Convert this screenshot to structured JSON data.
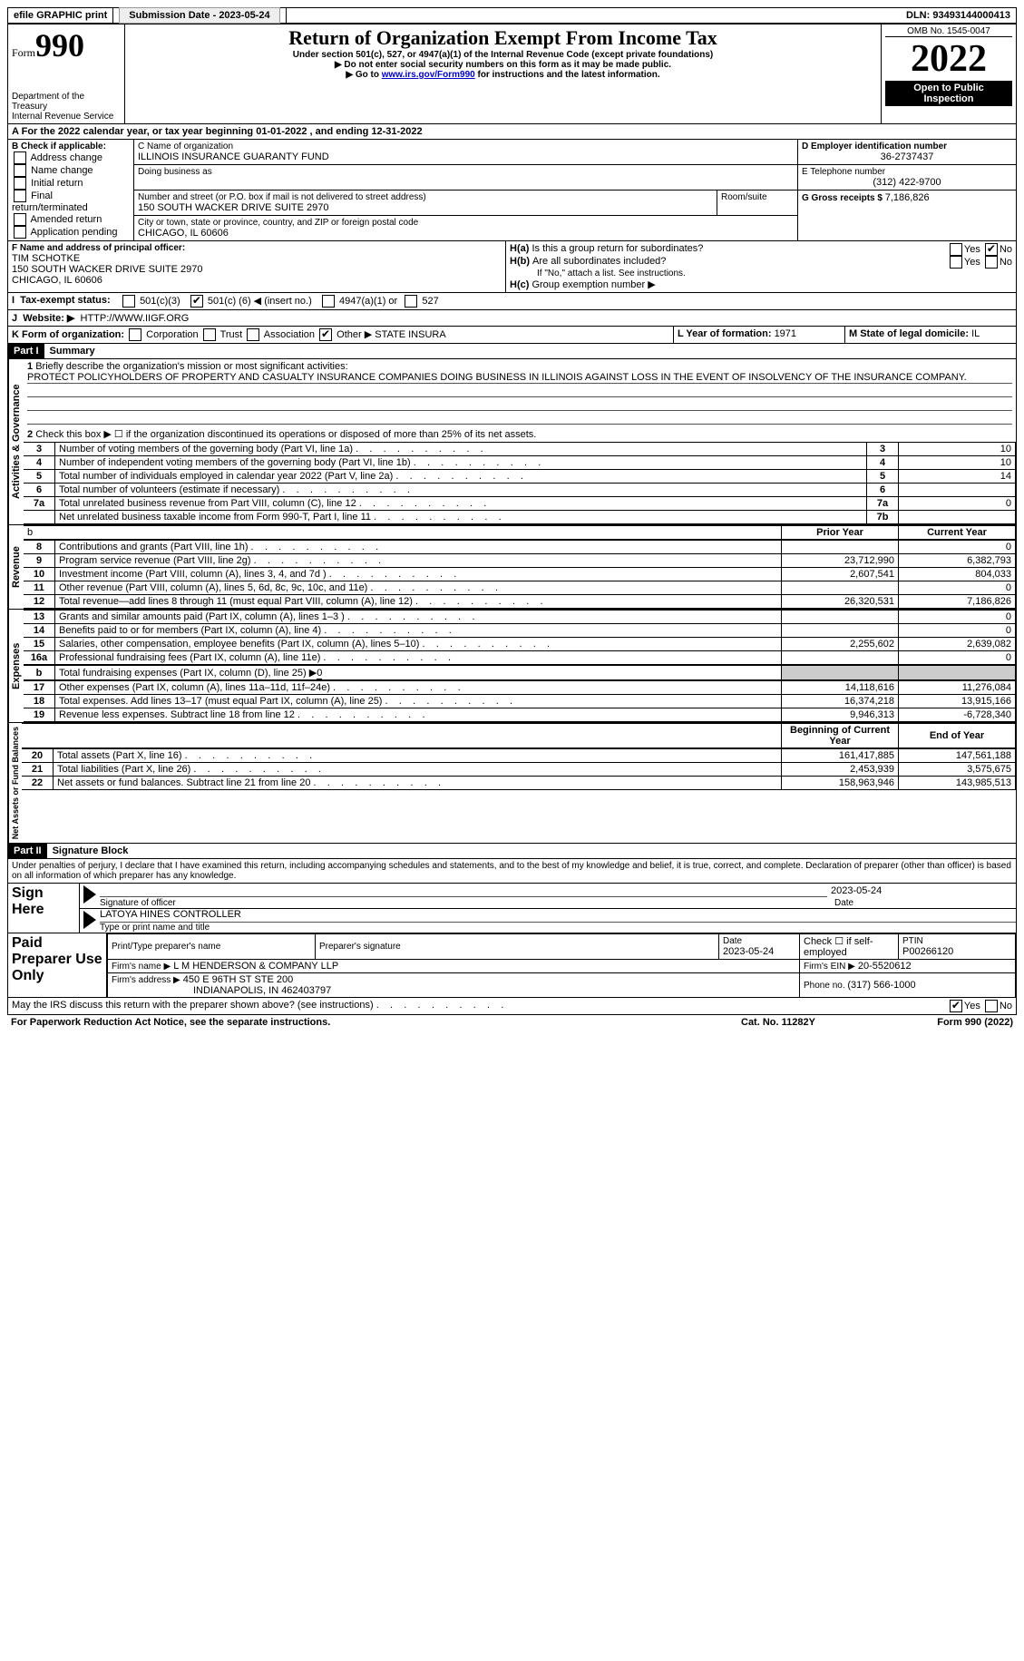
{
  "top": {
    "efile": "efile GRAPHIC print",
    "sub_label": "Submission Date - 2023-05-24",
    "dln_label": "DLN: 93493144000413"
  },
  "header": {
    "form_label": "Form",
    "form_number": "990",
    "title": "Return of Organization Exempt From Income Tax",
    "sub1": "Under section 501(c), 527, or 4947(a)(1) of the Internal Revenue Code (except private foundations)",
    "sub2": "Do not enter social security numbers on this form as it may be made public.",
    "sub3_pre": "Go to ",
    "sub3_link": "www.irs.gov/Form990",
    "sub3_post": " for instructions and the latest information.",
    "dept": "Department of the Treasury",
    "irs": "Internal Revenue Service",
    "omb": "OMB No. 1545-0047",
    "year": "2022",
    "open": "Open to Public Inspection"
  },
  "A": {
    "text_pre": "For the 2022 calendar year, or tax year beginning ",
    "begin": "01-01-2022",
    "mid": " , and ending ",
    "end": "12-31-2022"
  },
  "B": {
    "label": "B Check if applicable:",
    "items": [
      "Address change",
      "Name change",
      "Initial return",
      "Final return/terminated",
      "Amended return",
      "Application pending"
    ]
  },
  "C": {
    "name_label": "C Name of organization",
    "name": "ILLINOIS INSURANCE GUARANTY FUND",
    "dba_label": "Doing business as",
    "street_label": "Number and street (or P.O. box if mail is not delivered to street address)",
    "room_label": "Room/suite",
    "street": "150 SOUTH WACKER DRIVE SUITE 2970",
    "city_label": "City or town, state or province, country, and ZIP or foreign postal code",
    "city": "CHICAGO, IL  60606"
  },
  "D": {
    "label": "D Employer identification number",
    "value": "36-2737437"
  },
  "E": {
    "label": "E Telephone number",
    "value": "(312) 422-9700"
  },
  "G": {
    "label": "G Gross receipts $ ",
    "value": "7,186,826"
  },
  "F": {
    "label": "F Name and address of principal officer:",
    "name": "TIM SCHOTKE",
    "addr1": "150 SOUTH WACKER DRIVE SUITE 2970",
    "addr2": "CHICAGO, IL  60606"
  },
  "H": {
    "a": "Is this a group return for subordinates?",
    "b": "Are all subordinates included?",
    "b_note": "If \"No,\" attach a list. See instructions.",
    "c_label": "Group exemption number ▶",
    "yes": "Yes",
    "no": "No"
  },
  "I": {
    "label": "Tax-exempt status:",
    "c3": "501(c)(3)",
    "c_other_pre": "501(c) (",
    "c_other_val": "6",
    "c_other_post": ") ◀ (insert no.)",
    "a1": "4947(a)(1) or",
    "s527": "527"
  },
  "J": {
    "label": "Website: ▶",
    "value": "HTTP://WWW.IIGF.ORG"
  },
  "K": {
    "label": "K Form of organization:",
    "corp": "Corporation",
    "trust": "Trust",
    "assoc": "Association",
    "other_label": "Other ▶",
    "other_val": "STATE INSURA"
  },
  "L": {
    "label": "L Year of formation: ",
    "value": "1971"
  },
  "M": {
    "label": "M State of legal domicile: ",
    "value": "IL"
  },
  "partI": {
    "header": "Part I",
    "title": "Summary",
    "line1_label": "Briefly describe the organization's mission or most significant activities:",
    "line1_text": "PROTECT POLICYHOLDERS OF PROPERTY AND CASUALTY INSURANCE COMPANIES DOING BUSINESS IN ILLINOIS AGAINST LOSS IN THE EVENT OF INSOLVENCY OF THE INSURANCE COMPANY.",
    "line2": "Check this box ▶ ☐ if the organization discontinued its operations or disposed of more than 25% of its net assets.",
    "sectionA": "Activities & Governance",
    "sectionR": "Revenue",
    "sectionE": "Expenses",
    "sectionN": "Net Assets or Fund Balances",
    "rows_ag": [
      {
        "n": "3",
        "t": "Number of voting members of the governing body (Part VI, line 1a)",
        "box": "3",
        "v": "10"
      },
      {
        "n": "4",
        "t": "Number of independent voting members of the governing body (Part VI, line 1b)",
        "box": "4",
        "v": "10"
      },
      {
        "n": "5",
        "t": "Total number of individuals employed in calendar year 2022 (Part V, line 2a)",
        "box": "5",
        "v": "14"
      },
      {
        "n": "6",
        "t": "Total number of volunteers (estimate if necessary)",
        "box": "6",
        "v": ""
      },
      {
        "n": "7a",
        "t": "Total unrelated business revenue from Part VIII, column (C), line 12",
        "box": "7a",
        "v": "0"
      },
      {
        "n": "",
        "t": "Net unrelated business taxable income from Form 990-T, Part I, line 11",
        "box": "7b",
        "v": ""
      }
    ],
    "col_prior": "Prior Year",
    "col_current": "Current Year",
    "rows_rev": [
      {
        "n": "8",
        "t": "Contributions and grants (Part VIII, line 1h)",
        "p": "",
        "c": "0"
      },
      {
        "n": "9",
        "t": "Program service revenue (Part VIII, line 2g)",
        "p": "23,712,990",
        "c": "6,382,793"
      },
      {
        "n": "10",
        "t": "Investment income (Part VIII, column (A), lines 3, 4, and 7d )",
        "p": "2,607,541",
        "c": "804,033"
      },
      {
        "n": "11",
        "t": "Other revenue (Part VIII, column (A), lines 5, 6d, 8c, 9c, 10c, and 11e)",
        "p": "",
        "c": "0"
      },
      {
        "n": "12",
        "t": "Total revenue—add lines 8 through 11 (must equal Part VIII, column (A), line 12)",
        "p": "26,320,531",
        "c": "7,186,826"
      }
    ],
    "rows_exp": [
      {
        "n": "13",
        "t": "Grants and similar amounts paid (Part IX, column (A), lines 1–3 )",
        "p": "",
        "c": "0"
      },
      {
        "n": "14",
        "t": "Benefits paid to or for members (Part IX, column (A), line 4)",
        "p": "",
        "c": "0"
      },
      {
        "n": "15",
        "t": "Salaries, other compensation, employee benefits (Part IX, column (A), lines 5–10)",
        "p": "2,255,602",
        "c": "2,639,082"
      },
      {
        "n": "16a",
        "t": "Professional fundraising fees (Part IX, column (A), line 11e)",
        "p": "",
        "c": "0"
      }
    ],
    "row_16b_label": "Total fundraising expenses (Part IX, column (D), line 25) ▶",
    "row_16b_val": "0",
    "rows_exp2": [
      {
        "n": "17",
        "t": "Other expenses (Part IX, column (A), lines 11a–11d, 11f–24e)",
        "p": "14,118,616",
        "c": "11,276,084"
      },
      {
        "n": "18",
        "t": "Total expenses. Add lines 13–17 (must equal Part IX, column (A), line 25)",
        "p": "16,374,218",
        "c": "13,915,166"
      },
      {
        "n": "19",
        "t": "Revenue less expenses. Subtract line 18 from line 12",
        "p": "9,946,313",
        "c": "-6,728,340"
      }
    ],
    "col_begin": "Beginning of Current Year",
    "col_end": "End of Year",
    "rows_net": [
      {
        "n": "20",
        "t": "Total assets (Part X, line 16)",
        "p": "161,417,885",
        "c": "147,561,188"
      },
      {
        "n": "21",
        "t": "Total liabilities (Part X, line 26)",
        "p": "2,453,939",
        "c": "3,575,675"
      },
      {
        "n": "22",
        "t": "Net assets or fund balances. Subtract line 21 from line 20",
        "p": "158,963,946",
        "c": "143,985,513"
      }
    ]
  },
  "partII": {
    "header": "Part II",
    "title": "Signature Block",
    "declaration": "Under penalties of perjury, I declare that I have examined this return, including accompanying schedules and statements, and to the best of my knowledge and belief, it is true, correct, and complete. Declaration of preparer (other than officer) is based on all information of which preparer has any knowledge.",
    "sign_here": "Sign Here",
    "sig_officer": "Signature of officer",
    "sig_date": "2023-05-24",
    "date_label": "Date",
    "officer_name": "LATOYA HINES  CONTROLLER",
    "officer_type_label": "Type or print name and title",
    "paid_label": "Paid Preparer Use Only",
    "prep_name_label": "Print/Type preparer's name",
    "prep_sig_label": "Preparer's signature",
    "prep_date_label": "Date",
    "prep_date": "2023-05-24",
    "self_emp": "Check ☐ if self-employed",
    "ptin_label": "PTIN",
    "ptin": "P00266120",
    "firm_name_label": "Firm's name    ▶",
    "firm_name": "L M HENDERSON & COMPANY LLP",
    "firm_ein_label": "Firm's EIN ▶",
    "firm_ein": "20-5520612",
    "firm_addr_label": "Firm's address ▶",
    "firm_addr1": "450 E 96TH ST STE 200",
    "firm_addr2": "INDIANAPOLIS, IN  462403797",
    "phone_label": "Phone no. ",
    "phone": "(317) 566-1000",
    "discuss": "May the IRS discuss this return with the preparer shown above? (see instructions)"
  },
  "footer": {
    "left": "For Paperwork Reduction Act Notice, see the separate instructions.",
    "mid": "Cat. No. 11282Y",
    "right": "Form 990 (2022)"
  }
}
